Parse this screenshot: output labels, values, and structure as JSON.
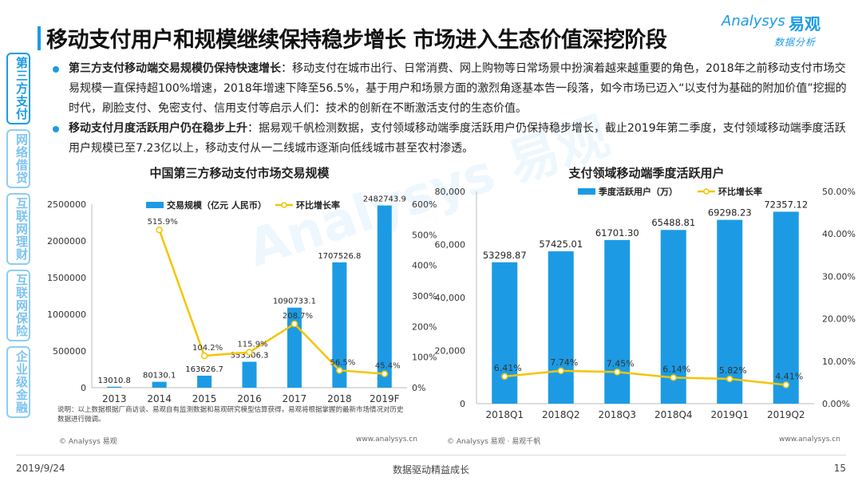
{
  "page_title": "移动支付用户和规模继续保持稳步增长 市场进入生态价值深挖阶段",
  "logo": {
    "en": "Analysys",
    "cn": "易观",
    "sub": "数据分析"
  },
  "watermark": "Analysys 易观",
  "side_tabs": [
    {
      "label": "第三方支付",
      "active": true
    },
    {
      "label": "网络借贷",
      "active": false
    },
    {
      "label": "互联网理财",
      "active": false
    },
    {
      "label": "互联网保险",
      "active": false
    },
    {
      "label": "企业级金融",
      "active": false
    }
  ],
  "bullets": [
    {
      "lead": "第三方支付移动端交易规模仍保持快速增长",
      "text": "：移动支付在城市出行、日常消费、网上购物等日常场景中扮演着越来越重要的角色，2018年之前移动支付市场交易规模一直保持超100%增速，2018年增速下降至56.5%，基于用户和场景方面的激烈角逐基本告一段落，如今市场已迈入“以支付为基础的附加价值”挖掘的时代，刷脸支付、免密支付、信用支付等启示人们：技术的创新在不断激活支付的生态价值。"
    },
    {
      "lead": "移动支付月度活跃用户仍在稳步上升",
      "text": "：据易观千帆检测数据，支付领域移动端季度活跃用户仍保持稳步增长，截止2019年第二季度，支付领域移动端季度活跃用户规模已至7.23亿以上，移动支付从一二线城市逐渐向低线城市甚至农村渗透。"
    }
  ],
  "chart_data": [
    {
      "type": "bar",
      "title": "中国第三方移动支付市场交易规模",
      "categories": [
        "2013",
        "2014",
        "2015",
        "2016",
        "2017",
        "2018",
        "2019F"
      ],
      "series": [
        {
          "name": "交易规模（亿元 人民币）",
          "type": "bar",
          "axis": "left",
          "color": "#1c9be4",
          "values": [
            13010.8,
            80130.1,
            163626.7,
            353306.3,
            1090733.1,
            1707526.8,
            2482743.9
          ],
          "labels": [
            "13010.8",
            "80130.1",
            "163626.7",
            "353306.3",
            "1090733.1",
            "1707526.8",
            "2482743.9"
          ]
        },
        {
          "name": "环比增长率",
          "type": "line",
          "axis": "right",
          "color": "#f5c400",
          "values": [
            null,
            515.9,
            104.2,
            115.9,
            208.7,
            56.5,
            45.4
          ],
          "labels": [
            "",
            "515.9%",
            "104.2%",
            "115.9%",
            "208.7%",
            "56.5%",
            "45.4%"
          ]
        }
      ],
      "ylim": [
        0,
        2500000
      ],
      "yticks": [
        "0",
        "500000",
        "1000000",
        "1500000",
        "2000000",
        "2500000"
      ],
      "y2lim": [
        0,
        600
      ],
      "y2ticks": [
        "0%",
        "100%",
        "200%",
        "300%",
        "400%",
        "500%",
        "600%"
      ],
      "legend_position": "top"
    },
    {
      "type": "bar",
      "title": "支付领域移动端季度活跃用户",
      "categories": [
        "2018Q1",
        "2018Q2",
        "2018Q3",
        "2018Q4",
        "2019Q1",
        "2019Q2"
      ],
      "series": [
        {
          "name": "季度活跃用户（万）",
          "type": "bar",
          "axis": "left",
          "color": "#1c9be4",
          "values": [
            53298.87,
            57425.01,
            61701.3,
            65488.81,
            69298.23,
            72357.12
          ],
          "labels": [
            "53298.87",
            "57425.01",
            "61701.30",
            "65488.81",
            "69298.23",
            "72357.12"
          ]
        },
        {
          "name": "环比增长率",
          "type": "line",
          "axis": "right",
          "color": "#f5c400",
          "values": [
            6.41,
            7.74,
            7.45,
            6.14,
            5.82,
            4.41
          ],
          "labels": [
            "6.41%",
            "7.74%",
            "7.45%",
            "6.14%",
            "5.82%",
            "4.41%"
          ]
        }
      ],
      "ylim": [
        0,
        80000
      ],
      "yticks": [
        "0",
        "20,000",
        "40,000",
        "60,000",
        "80,000"
      ],
      "y2lim": [
        0,
        50
      ],
      "y2ticks": [
        "0.00%",
        "10.00%",
        "20.00%",
        "30.00%",
        "40.00%",
        "50.00%"
      ],
      "legend_position": "top"
    }
  ],
  "note": "说明：以上数据根据厂商访谈、易观自有监测数据和易观研究模型估算获得，易观将根据掌握的最新市场情况对历史数据进行微调。",
  "copyright_left": "© Analysys 易观",
  "url_left": "www.analysys.cn",
  "copyright_right": "© Analysys 易观 · 易观千帆",
  "url_right": "www.analysys.cn",
  "footer": {
    "date": "2019/9/24",
    "center": "数据驱动精益成长",
    "page": "15"
  }
}
